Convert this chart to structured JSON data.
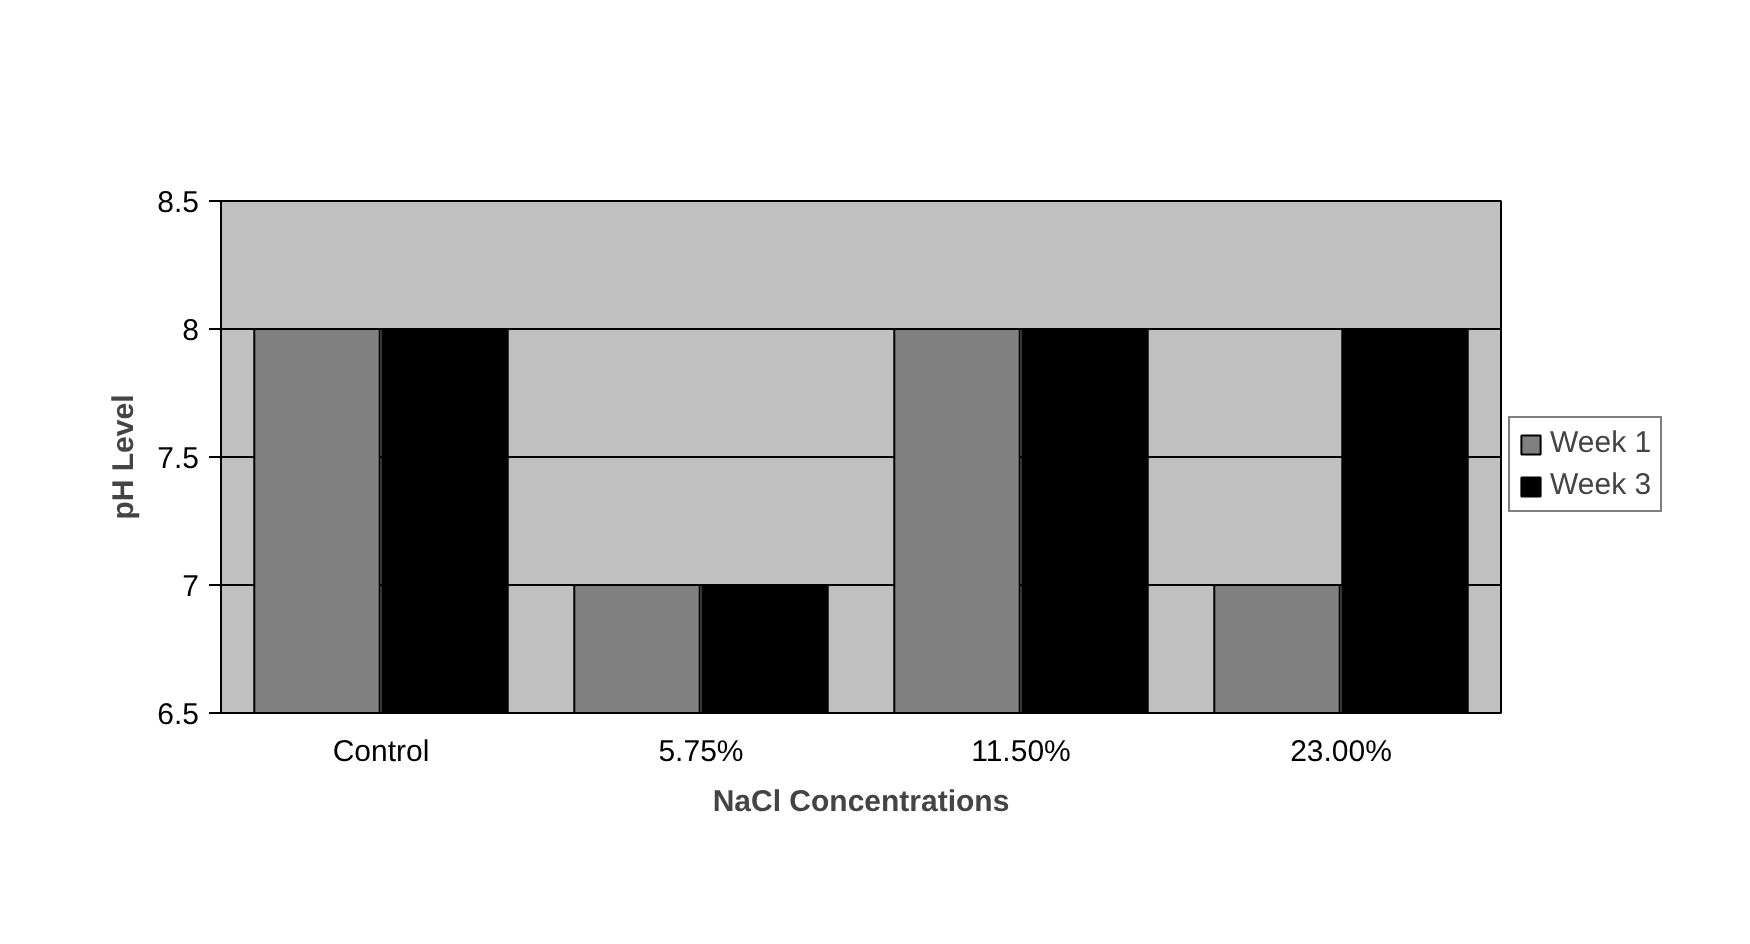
{
  "chart_data": {
    "type": "bar",
    "xlabel": "NaCl Concentrations",
    "ylabel": "pH Level",
    "categories": [
      "Control",
      "5.75%",
      "11.50%",
      "23.00%"
    ],
    "series": [
      {
        "name": "Week 1",
        "color": "#808080",
        "values": [
          8,
          7,
          8,
          7
        ]
      },
      {
        "name": "Week 3",
        "color": "#000000",
        "values": [
          8,
          7,
          8,
          8
        ]
      }
    ],
    "ylim": [
      6.5,
      8.5
    ],
    "yticks": [
      6.5,
      7,
      7.5,
      8,
      8.5
    ],
    "grid": "y",
    "legend": "right"
  }
}
